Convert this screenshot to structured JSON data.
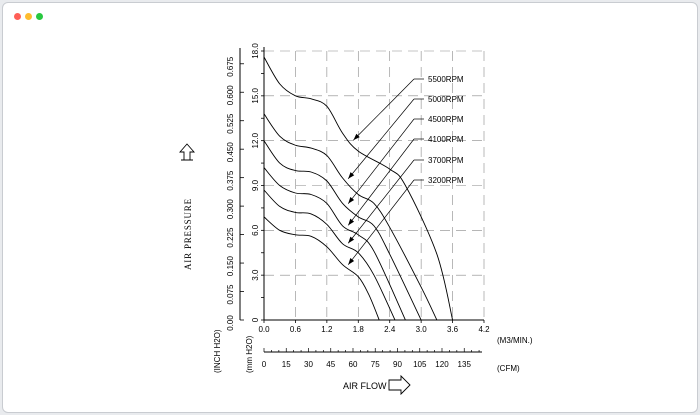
{
  "window": {
    "controls": [
      "close",
      "minimize",
      "maximize"
    ]
  },
  "chart_data": {
    "type": "line",
    "title": "",
    "ylabel": "AIR PRESSURE",
    "ylabel_left_units": "(INCH H2O)",
    "ylabel_right_units": "(mm H2O)",
    "xlabel": "AIR FLOW",
    "x_units_top": "(M3/MIN.)",
    "x_units_bottom": "(CFM)",
    "xlim": [
      0,
      4.2
    ],
    "ylim": [
      0,
      18
    ],
    "x_ticks": [
      "0.0",
      "0.6",
      "1.2",
      "1.8",
      "2.4",
      "3.0",
      "3.6",
      "4.2"
    ],
    "x_cfm_ticks": [
      "0",
      "15",
      "30",
      "45",
      "60",
      "75",
      "90",
      "105",
      "120",
      "135"
    ],
    "y_mm_ticks": [
      "0",
      "3.0",
      "6.0",
      "9.0",
      "12.0",
      "15.0",
      "18.0"
    ],
    "y_inch_ticks": [
      "0.00",
      "0.075",
      "0.150",
      "0.225",
      "0.300",
      "0.375",
      "0.450",
      "0.525",
      "0.600",
      "0.675"
    ],
    "grid": true,
    "legend_position": "top-right",
    "series": [
      {
        "name": "5500RPM",
        "points": [
          [
            0,
            17.6
          ],
          [
            0.3,
            15.8
          ],
          [
            0.6,
            15.0
          ],
          [
            0.9,
            14.8
          ],
          [
            1.2,
            14.3
          ],
          [
            1.5,
            12.5
          ],
          [
            1.8,
            11.3
          ],
          [
            2.4,
            10.1
          ],
          [
            2.7,
            9.0
          ],
          [
            3.3,
            4.4
          ],
          [
            3.6,
            0
          ]
        ]
      },
      {
        "name": "5000RPM",
        "points": [
          [
            0,
            13.8
          ],
          [
            0.3,
            12.3
          ],
          [
            0.6,
            11.7
          ],
          [
            0.9,
            11.5
          ],
          [
            1.2,
            11.0
          ],
          [
            1.5,
            9.5
          ],
          [
            1.8,
            8.4
          ],
          [
            2.1,
            7.8
          ],
          [
            2.4,
            6.2
          ],
          [
            3.0,
            2.2
          ],
          [
            3.3,
            0
          ]
        ]
      },
      {
        "name": "4500RPM",
        "points": [
          [
            0,
            12.0
          ],
          [
            0.3,
            10.5
          ],
          [
            0.6,
            10.0
          ],
          [
            0.9,
            9.9
          ],
          [
            1.2,
            9.3
          ],
          [
            1.5,
            7.8
          ],
          [
            1.8,
            6.9
          ],
          [
            2.1,
            6.3
          ],
          [
            2.4,
            4.4
          ],
          [
            3.0,
            0
          ]
        ]
      },
      {
        "name": "4100RPM",
        "points": [
          [
            0,
            10.2
          ],
          [
            0.3,
            9.0
          ],
          [
            0.6,
            8.5
          ],
          [
            0.9,
            8.4
          ],
          [
            1.2,
            7.8
          ],
          [
            1.5,
            6.3
          ],
          [
            1.8,
            5.7
          ],
          [
            2.1,
            4.6
          ],
          [
            2.7,
            0
          ]
        ]
      },
      {
        "name": "3700RPM",
        "points": [
          [
            0,
            8.7
          ],
          [
            0.3,
            7.6
          ],
          [
            0.6,
            7.2
          ],
          [
            0.9,
            7.1
          ],
          [
            1.2,
            6.4
          ],
          [
            1.5,
            5.1
          ],
          [
            1.8,
            4.5
          ],
          [
            2.1,
            3.0
          ],
          [
            2.5,
            0
          ]
        ]
      },
      {
        "name": "3200RPM",
        "points": [
          [
            0,
            6.9
          ],
          [
            0.3,
            6.0
          ],
          [
            0.6,
            5.7
          ],
          [
            0.9,
            5.6
          ],
          [
            1.2,
            4.9
          ],
          [
            1.5,
            3.7
          ],
          [
            1.8,
            2.9
          ],
          [
            2.0,
            1.7
          ],
          [
            2.2,
            0
          ]
        ]
      }
    ]
  }
}
